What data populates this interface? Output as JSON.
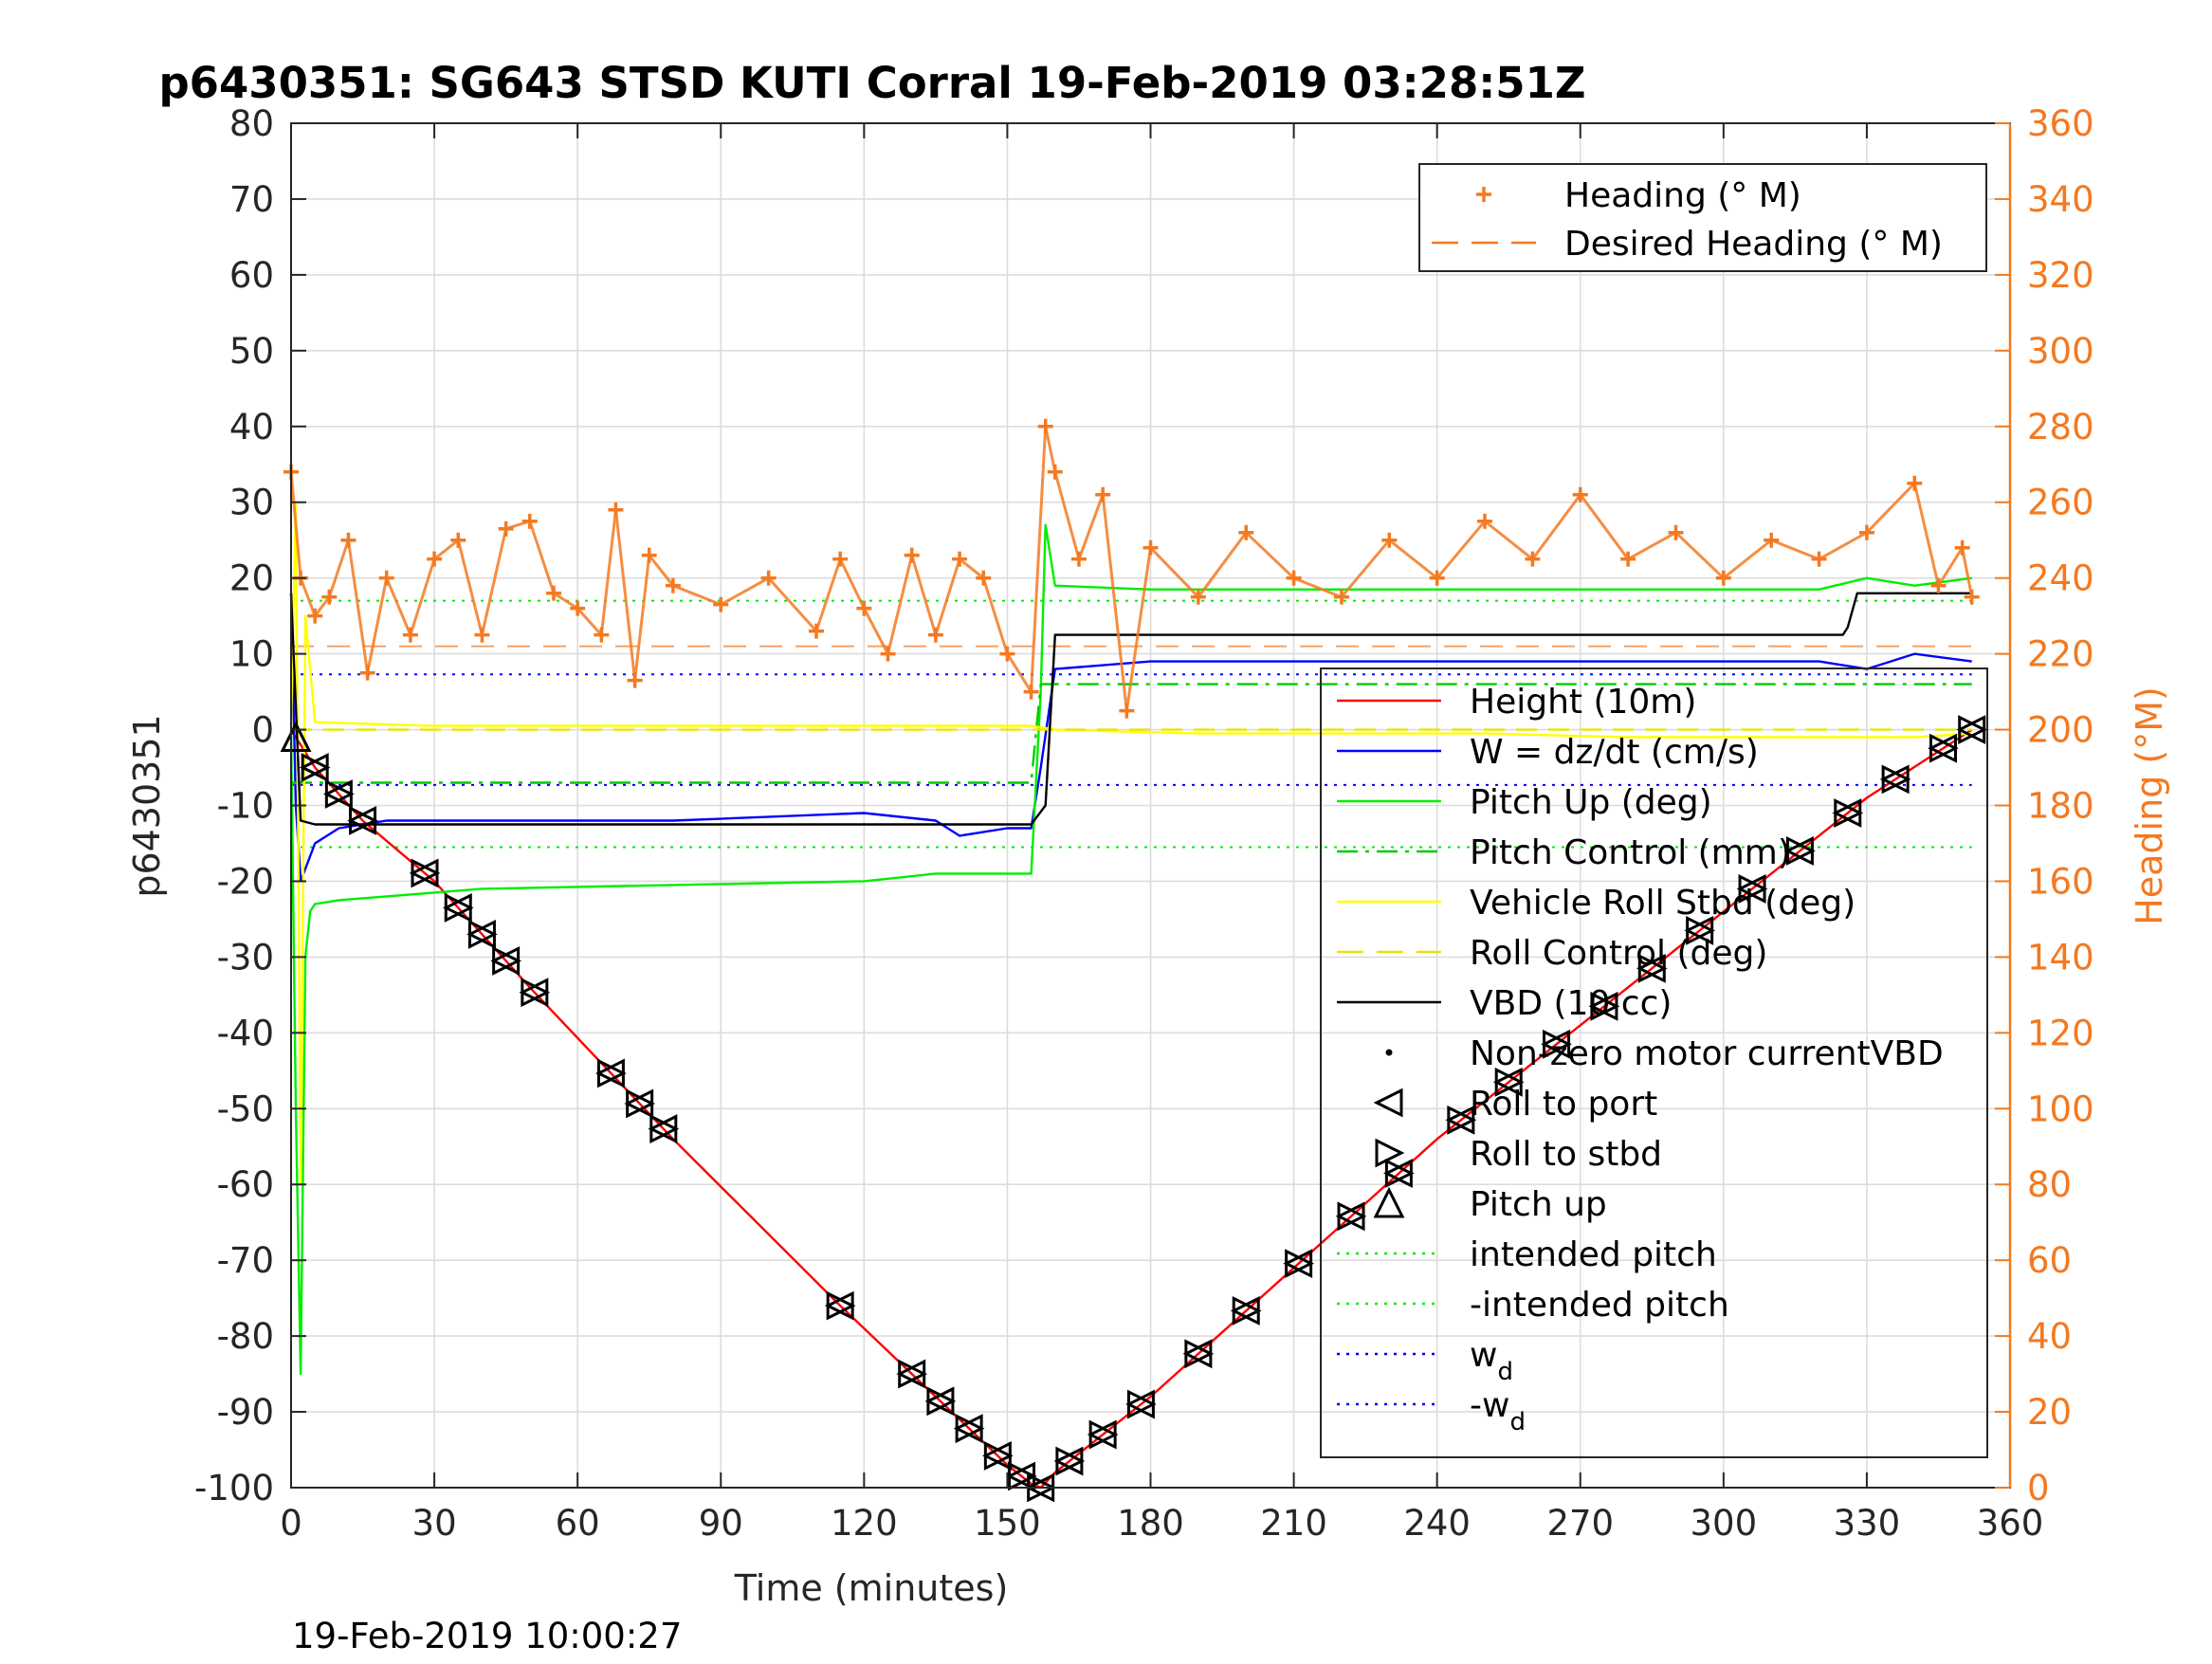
{
  "chart_data": {
    "type": "line",
    "title": "p6430351: SG643 STSD KUTI Corral 19-Feb-2019 03:28:51Z",
    "xlabel": "Time (minutes)",
    "ylabel": "p6430351",
    "y2label": "Heading (°M)",
    "footer": "19-Feb-2019 10:00:27",
    "xlim": [
      0,
      360
    ],
    "ylim": [
      -100,
      80
    ],
    "y2lim": [
      0,
      360
    ],
    "xticks": [
      "0",
      "30",
      "60",
      "90",
      "120",
      "150",
      "180",
      "210",
      "240",
      "270",
      "300",
      "330",
      "360"
    ],
    "yticks": [
      "80",
      "70",
      "60",
      "50",
      "40",
      "30",
      "20",
      "10",
      "0",
      "-10",
      "-20",
      "-30",
      "-40",
      "-50",
      "-60",
      "-70",
      "-80",
      "-90",
      "-100"
    ],
    "y2ticks": [
      "360",
      "340",
      "320",
      "300",
      "280",
      "260",
      "240",
      "220",
      "200",
      "180",
      "160",
      "140",
      "120",
      "100",
      "80",
      "60",
      "40",
      "20",
      "0"
    ],
    "grid": true,
    "legend_top": {
      "placement": "top-right",
      "entries": [
        {
          "label": "Heading (° M)",
          "color": "#F47920",
          "style": "plus"
        },
        {
          "label": "Desired Heading (° M)",
          "color": "#F47920",
          "style": "dash"
        }
      ]
    },
    "legend_main": {
      "placement": "center-right",
      "entries": [
        {
          "label": "Height (10m)",
          "color": "#ff0000",
          "style": "line"
        },
        {
          "label": "W = dz/dt (cm/s)",
          "color": "#0000ff",
          "style": "line"
        },
        {
          "label": "Pitch Up (deg)",
          "color": "#00ee00",
          "style": "line"
        },
        {
          "label": "Pitch Control (mm)",
          "color": "#00cc00",
          "style": "dashdot"
        },
        {
          "label": "Vehicle Roll Stbd (deg)",
          "color": "#ffff00",
          "style": "line"
        },
        {
          "label": "Roll Control (deg)",
          "color": "#e6e600",
          "style": "dash"
        },
        {
          "label": "VBD (10 cc)",
          "color": "#000000",
          "style": "line"
        },
        {
          "label": "Non-zero motor currentVBD",
          "color": "#000000",
          "style": "dot"
        },
        {
          "label": "Roll to port",
          "color": "#000000",
          "style": "tri-left"
        },
        {
          "label": "Roll to stbd",
          "color": "#000000",
          "style": "tri-right"
        },
        {
          "label": "Pitch up",
          "color": "#000000",
          "style": "tri-up"
        },
        {
          "label": "intended pitch",
          "color": "#00ee00",
          "style": "dotted"
        },
        {
          "label": "-intended pitch",
          "color": "#00ee00",
          "style": "dotted"
        },
        {
          "label": "w",
          "sub": "d",
          "color": "#0000ff",
          "style": "dotted"
        },
        {
          "label": "-w",
          "sub": "d",
          "color": "#0000ff",
          "style": "dotted"
        }
      ]
    },
    "reference_lines": {
      "intended_pitch": 17,
      "neg_intended_pitch": -15.5,
      "w_d": 7.3,
      "neg_w_d": -7.3,
      "desired_heading_deg": 222
    },
    "series": [
      {
        "name": "Height (10m)",
        "color": "#ff0000",
        "x": [
          0,
          5,
          15,
          30,
          50,
          80,
          115,
          135,
          150,
          155,
          157,
          160,
          180,
          210,
          240,
          270,
          300,
          330,
          352
        ],
        "y": [
          0,
          -5,
          -12,
          -20,
          -34,
          -54,
          -76,
          -88,
          -97,
          -99.5,
          -100,
          -98,
          -88,
          -71,
          -54,
          -39,
          -24,
          -9,
          0
        ]
      },
      {
        "name": "W = dz/dt (cm/s)",
        "color": "#0000ff",
        "x": [
          0,
          1,
          2,
          5,
          10,
          20,
          40,
          80,
          120,
          135,
          140,
          150,
          155,
          157,
          160,
          180,
          210,
          240,
          270,
          300,
          320,
          330,
          340,
          352
        ],
        "y": [
          18,
          -10,
          -20,
          -15,
          -13,
          -12,
          -12,
          -12,
          -11,
          -12,
          -14,
          -13,
          -13,
          -5,
          8,
          9,
          9,
          9,
          9,
          9,
          9,
          8,
          10,
          9
        ]
      },
      {
        "name": "Pitch Up (deg)",
        "color": "#00ee00",
        "x": [
          0,
          1,
          2,
          3,
          4,
          5,
          10,
          20,
          40,
          80,
          120,
          135,
          150,
          155,
          157,
          158,
          160,
          180,
          210,
          240,
          270,
          300,
          320,
          330,
          340,
          352
        ],
        "y": [
          0,
          -50,
          -85,
          -30,
          -24,
          -23,
          -22.5,
          -22,
          -21,
          -20.5,
          -20,
          -19,
          -19,
          -19,
          5,
          27,
          19,
          18.5,
          18.5,
          18.5,
          18.5,
          18.5,
          18.5,
          20,
          19,
          20
        ]
      },
      {
        "name": "Pitch Control (mm)",
        "color": "#00cc00",
        "dash": "22,8,4,8",
        "x": [
          0,
          155,
          157,
          352
        ],
        "y": [
          -7,
          -7,
          6,
          6
        ]
      },
      {
        "name": "Vehicle Roll Stbd (deg)",
        "color": "#ffff00",
        "x": [
          0,
          1,
          2,
          3,
          5,
          30,
          60,
          90,
          120,
          150,
          155,
          160,
          190,
          220,
          250,
          280,
          310,
          340,
          352
        ],
        "y": [
          0,
          30,
          -60,
          15,
          1,
          0.5,
          0.5,
          0.5,
          0.5,
          0.5,
          0.5,
          0,
          -0.5,
          -0.5,
          -0.5,
          -1,
          -1,
          -1,
          -0.5
        ]
      },
      {
        "name": "Roll Control (deg)",
        "color": "#e6e600",
        "dash": "22,12",
        "x": [
          0,
          352
        ],
        "y": [
          0,
          0
        ]
      },
      {
        "name": "VBD (10 cc)",
        "color": "#000000",
        "x": [
          0,
          2,
          5,
          150,
          155,
          158,
          160,
          325,
          326,
          328,
          352
        ],
        "y": [
          18,
          -12,
          -12.5,
          -12.5,
          -12.5,
          -10,
          12.5,
          12.5,
          13.5,
          18,
          18
        ]
      }
    ],
    "heading_series": {
      "name": "Heading (° M)",
      "color": "#F47920",
      "x": [
        0,
        2,
        5,
        8,
        12,
        16,
        20,
        25,
        30,
        35,
        40,
        45,
        50,
        55,
        60,
        65,
        68,
        72,
        75,
        80,
        90,
        100,
        110,
        115,
        120,
        125,
        130,
        135,
        140,
        145,
        150,
        155,
        158,
        160,
        165,
        170,
        175,
        180,
        190,
        200,
        210,
        220,
        230,
        240,
        250,
        260,
        270,
        280,
        290,
        300,
        310,
        320,
        330,
        340,
        345,
        350,
        352
      ],
      "y": [
        268,
        240,
        230,
        235,
        250,
        215,
        240,
        225,
        245,
        250,
        225,
        253,
        255,
        236,
        232,
        225,
        258,
        213,
        246,
        238,
        233,
        240,
        226,
        245,
        232,
        220,
        246,
        225,
        245,
        240,
        220,
        210,
        280,
        268,
        245,
        262,
        205,
        248,
        235,
        252,
        240,
        235,
        250,
        240,
        255,
        245,
        262,
        245,
        252,
        240,
        250,
        245,
        252,
        265,
        238,
        248,
        235
      ]
    },
    "markers": {
      "roll_to_port_x": [
        5,
        10,
        15,
        28,
        35,
        40,
        45,
        51,
        67,
        73,
        78,
        115,
        130,
        136,
        142,
        148,
        153,
        157,
        163,
        170,
        178,
        190,
        200,
        211,
        222,
        232,
        245,
        255,
        265,
        275,
        285,
        295,
        306,
        316,
        326,
        336,
        346,
        352
      ],
      "pitch_up_x": [
        1
      ]
    }
  }
}
